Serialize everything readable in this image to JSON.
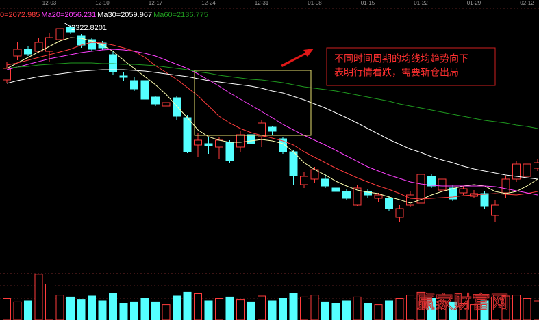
{
  "chart_data": {
    "type": "candlestick",
    "categories": [
      null,
      null,
      null,
      null,
      "12-03",
      null,
      null,
      null,
      null,
      "12-10",
      null,
      null,
      null,
      null,
      "12-17",
      null,
      null,
      null,
      null,
      "12-24",
      null,
      null,
      null,
      null,
      "12-31",
      null,
      null,
      null,
      null,
      "01-08",
      null,
      null,
      null,
      null,
      "01-15",
      null,
      null,
      null,
      null,
      "01-22",
      null,
      null,
      null,
      null,
      "01-29",
      null,
      null,
      null,
      null,
      "02-12",
      null
    ],
    "open": [
      2225.6,
      2267.6,
      2279.6,
      2276,
      2276,
      2296.4,
      2318,
      2303.6,
      2296.4,
      2290.4,
      2270,
      2232.8,
      2224.4,
      2224.4,
      2195.6,
      2180,
      2194.4,
      2159.6,
      2111.6,
      2114,
      2108,
      2116.4,
      2108,
      2129.6,
      2126,
      2142.8,
      2122.4,
      2099.6,
      2042,
      2051.6,
      2051.6,
      2036,
      2030,
      2006,
      2030,
      2018,
      2018,
      1984.4,
      2006,
      2009.6,
      2056.4,
      2032.4,
      2036,
      2027.6,
      2021.6,
      2026.4,
      1988,
      2027.6,
      2051.6,
      2056.4,
      2070.8
    ],
    "high": [
      2258,
      2291.6,
      2284.4,
      2300,
      2308.4,
      2318,
      2322.8201,
      2306,
      2300,
      2294,
      2276,
      2240,
      2231.6,
      2228,
      2198,
      2192,
      2198,
      2164.4,
      2132,
      2126,
      2126,
      2120,
      2135.6,
      2134.4,
      2156,
      2145.2,
      2126,
      2102,
      2063.6,
      2073.2,
      2060,
      2042,
      2034.8,
      2042,
      2033.6,
      2027.6,
      2022.8,
      2006,
      2030,
      2063.6,
      2061.2,
      2056.4,
      2042,
      2039.6,
      2032.4,
      2030,
      2015.6,
      2056.4,
      2084,
      2087.6,
      2087.6
    ],
    "low": [
      2219.6,
      2260.4,
      2267.6,
      2272.4,
      2258,
      2291.6,
      2306,
      2282,
      2276,
      2278.4,
      2234,
      2224.4,
      2206.4,
      2188.4,
      2180,
      2176.4,
      2156,
      2097.2,
      2090,
      2096,
      2087.6,
      2080.4,
      2099.6,
      2104.4,
      2108,
      2128.4,
      2096,
      2042,
      2036,
      2044.4,
      2036,
      2024,
      2015.6,
      2003.6,
      2018,
      2012,
      1996.4,
      1977.2,
      2002.4,
      2006,
      2036,
      2027.6,
      2013.2,
      2024,
      2018,
      2000,
      1976,
      2018,
      2046.8,
      2051.6,
      2066
    ],
    "close": [
      2246,
      2279.6,
      2271.2,
      2291.6,
      2300,
      2315.6,
      2309.6,
      2286.8,
      2279.6,
      2282,
      2240,
      2230.4,
      2210,
      2192,
      2183.6,
      2186,
      2162,
      2099.6,
      2120,
      2110.4,
      2120,
      2084,
      2129.6,
      2114,
      2150,
      2135.6,
      2099.6,
      2057.6,
      2056.4,
      2068.4,
      2039.6,
      2030,
      2018,
      2036,
      2024,
      2024,
      2000,
      2000,
      2024,
      2060,
      2039.6,
      2051.6,
      2016.8,
      2034.8,
      2026.4,
      2003.6,
      2006,
      2051.6,
      2078,
      2078,
      2080.4
    ],
    "volume": [
      45,
      38,
      40,
      96,
      75,
      52,
      48,
      42,
      50,
      40,
      55,
      35,
      38,
      45,
      38,
      32,
      50,
      58,
      55,
      40,
      45,
      48,
      42,
      38,
      50,
      40,
      45,
      55,
      48,
      52,
      38,
      35,
      40,
      48,
      35,
      32,
      40,
      45,
      52,
      58,
      45,
      40,
      38,
      35,
      32,
      40,
      48,
      50,
      52,
      45,
      40
    ],
    "up_color": "#ff3c3c",
    "down_color": "#54ffff",
    "series": [
      {
        "color": "#ffffb0",
        "values": [
          2246,
          2255.6,
          2265.2,
          2274.8,
          2284.4,
          2294,
          2300,
          2298.8,
          2294,
          2286.8,
          2276,
          2260.4,
          2246,
          2231.6,
          2217.2,
          2200.4,
          2180,
          2159.6,
          2138,
          2126,
          2120,
          2116.4,
          2116.4,
          2118.8,
          2121.2,
          2118.8,
          2114,
          2099.6,
          2080.4,
          2068.4,
          2058.8,
          2048,
          2039.6,
          2032.4,
          2028.8,
          2026.4,
          2020.4,
          2015.6,
          2009.6,
          2015.6,
          2024,
          2030,
          2034.8,
          2039.6,
          2042,
          2039.6,
          2030,
          2026.4,
          2030,
          2039.6,
          2051.6
        ]
      },
      {
        "name": "0=2072.985",
        "color": "#ff3c3c",
        "values": [
          2252,
          2255.6,
          2260.4,
          2265.2,
          2270,
          2274.8,
          2279.6,
          2286.8,
          2291.6,
          2290.4,
          2286.8,
          2282,
          2276,
          2265.2,
          2250.8,
          2238.8,
          2226.8,
          2212.4,
          2198,
          2180,
          2162,
          2150,
          2140.4,
          2133.2,
          2128.4,
          2123.6,
          2118.8,
          2111.6,
          2099.6,
          2090,
          2080.4,
          2070.8,
          2062.4,
          2054,
          2046.8,
          2039.6,
          2033.6,
          2026.4,
          2018,
          2016.8,
          2018,
          2019.2,
          2020.4,
          2022.8,
          2024,
          2025.2,
          2026.4,
          2025.2,
          2024,
          2026.4,
          2030
        ]
      },
      {
        "name": "Ma20=2056.231",
        "color": "#ff40ff",
        "values": [
          2243.6,
          2248.4,
          2253.2,
          2258,
          2262.8,
          2266.4,
          2270,
          2273.6,
          2276,
          2278.4,
          2279.6,
          2278.4,
          2276,
          2272.4,
          2267.6,
          2260.4,
          2253.2,
          2246,
          2236.4,
          2225.6,
          2214.8,
          2202.8,
          2192,
          2181.2,
          2170.4,
          2159.6,
          2147.6,
          2138,
          2128.4,
          2120,
          2111.6,
          2102,
          2092.4,
          2082.8,
          2073.2,
          2066,
          2058.8,
          2052.8,
          2046.8,
          2043.2,
          2040.8,
          2039.6,
          2039.6,
          2039.6,
          2039.6,
          2039.6,
          2038.4,
          2034.8,
          2031.2,
          2027.6,
          2024
        ]
      },
      {
        "name": "Ma30=2059.967",
        "color": "#ffffff",
        "values": [
          2219.6,
          2224.4,
          2228,
          2231.6,
          2234,
          2236.4,
          2238.8,
          2241.2,
          2242.4,
          2243.6,
          2243.6,
          2243.6,
          2242.4,
          2241.2,
          2238.8,
          2236.4,
          2234,
          2231.6,
          2228,
          2224.4,
          2222,
          2219.6,
          2217.2,
          2214.8,
          2211.2,
          2206.4,
          2202.8,
          2196.8,
          2190.8,
          2183.6,
          2176.4,
          2168,
          2159.6,
          2150,
          2140.4,
          2130.8,
          2121.2,
          2112.8,
          2104.4,
          2098.4,
          2091.2,
          2085.2,
          2080.4,
          2074.4,
          2069.6,
          2066,
          2062.4,
          2058.8,
          2056.4,
          2054,
          2051.6
        ]
      },
      {
        "name": "Ma60=2136.775",
        "color": "#1f9a1f",
        "values": [
          2246,
          2248.4,
          2249.6,
          2252,
          2253.2,
          2254.4,
          2255.6,
          2255.6,
          2255.6,
          2254.4,
          2254.4,
          2253.2,
          2253.2,
          2252,
          2250.8,
          2248.4,
          2246,
          2243.6,
          2240,
          2237.6,
          2234,
          2231.6,
          2229.2,
          2226.8,
          2225.6,
          2223.2,
          2220.8,
          2217.2,
          2213.6,
          2211.2,
          2208.8,
          2206.4,
          2202.8,
          2199.2,
          2195.6,
          2192,
          2188.4,
          2183.6,
          2180,
          2176.4,
          2172.8,
          2169.2,
          2165.6,
          2162,
          2158.4,
          2154.8,
          2152.4,
          2150,
          2146.4,
          2144,
          2140.4
        ]
      }
    ],
    "ylim": [
      1892,
      2354
    ],
    "volume_ylim": [
      0,
      100
    ],
    "annotation": [
      "不同时间周期的均线均趋势向下",
      "表明行情看跌，需要斩仓出局"
    ],
    "watermark": "赢家财富网"
  }
}
